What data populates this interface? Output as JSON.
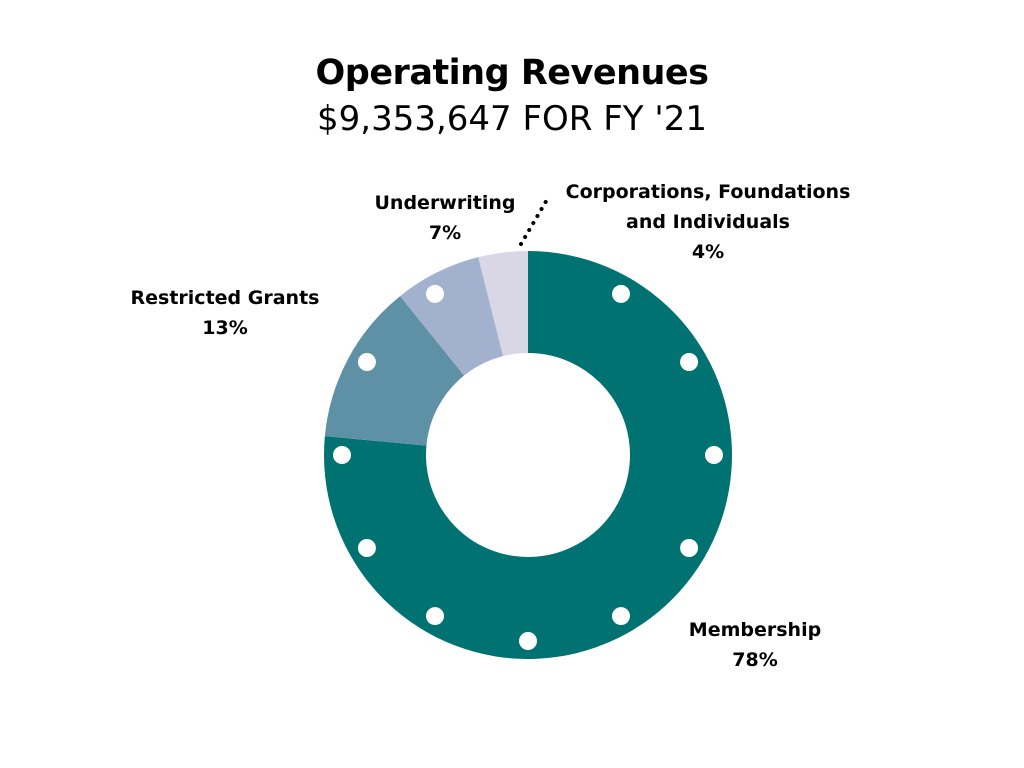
{
  "title": "Operating Revenues",
  "subtitle": "$9,353,647 FOR FY '21",
  "colors": {
    "membership": "#017272",
    "restricted_grants": "#5e91a6",
    "underwriting": "#a2b1cd",
    "corporations": "#d9d6e6",
    "leader_line": "#000000",
    "dots": "#ffffff"
  },
  "chart_data": {
    "type": "pie",
    "variant": "donut",
    "title": "Operating Revenues",
    "subtitle": "$9,353,647 FOR FY '21",
    "slices": [
      {
        "label": "Membership",
        "value": 78,
        "display": "78%",
        "color": "#017272",
        "label_lines": [
          "Membership"
        ]
      },
      {
        "label": "Restricted Grants",
        "value": 13,
        "display": "13%",
        "color": "#5e91a6",
        "label_lines": [
          "Restricted Grants"
        ]
      },
      {
        "label": "Underwriting",
        "value": 7,
        "display": "7%",
        "color": "#a2b1cd",
        "label_lines": [
          "Underwriting"
        ]
      },
      {
        "label": "Corporations, Foundations and Individuals",
        "value": 4,
        "display": "4%",
        "color": "#d9d6e6",
        "label_lines": [
          "Corporations, Foundations",
          "and Individuals"
        ]
      }
    ],
    "legend": "none",
    "labels": "outside"
  }
}
